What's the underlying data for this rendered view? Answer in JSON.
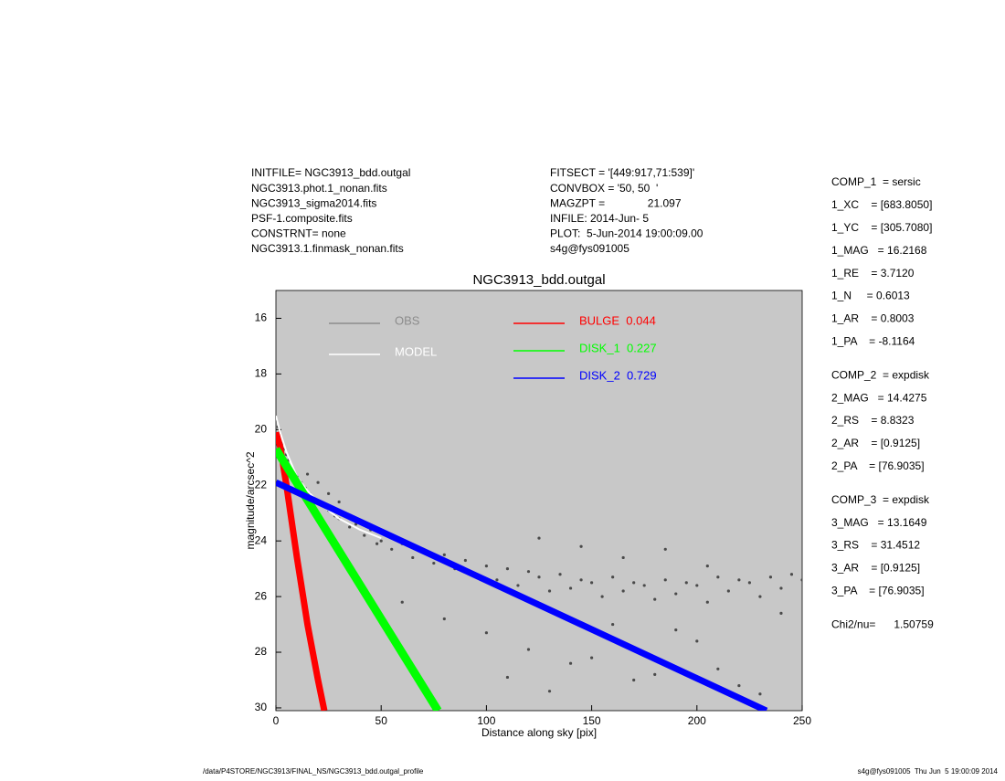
{
  "info_left": [
    "INITFILE= NGC3913_bdd.outgal",
    "NGC3913.phot.1_nonan.fits",
    "NGC3913_sigma2014.fits",
    "PSF-1.composite.fits",
    "CONSTRNT= none",
    "NGC3913.1.finmask_nonan.fits"
  ],
  "info_mid": [
    "FITSECT = '[449:917,71:539]'",
    "CONVBOX = '50, 50  '",
    "MAGZPT =              21.097",
    "INFILE: 2014-Jun- 5",
    "PLOT:  5-Jun-2014 19:00:09.00",
    "s4g@fys091005"
  ],
  "params": [
    [
      "COMP_1  = sersic",
      "1_XC    = [683.8050]",
      "1_YC    = [305.7080]",
      "1_MAG   = 16.2168",
      "1_RE    = 3.7120",
      "1_N     = 0.6013",
      "1_AR    = 0.8003",
      "1_PA    = -8.1164"
    ],
    [
      "COMP_2  = expdisk",
      "2_MAG   = 14.4275",
      "2_RS    = 8.8323",
      "2_AR    = [0.9125]",
      "2_PA    = [76.9035]"
    ],
    [
      "COMP_3  = expdisk",
      "3_MAG   = 13.1649",
      "3_RS    = 31.4512",
      "3_AR    = [0.9125]",
      "3_PA    = [76.9035]"
    ],
    [
      "Chi2/nu=      1.50759"
    ]
  ],
  "footer_left": "/data/P4STORE/NGC3913/FINAL_NS/NGC3913_bdd.outgal_profile",
  "footer_right": "s4g@fys091005  Thu Jun  5 19:00:09 2014",
  "chart_data": {
    "type": "scatter",
    "title": "NGC3913_bdd.outgal",
    "xlabel": "Distance along sky [pix]",
    "ylabel": "magnitude/arcsec^2",
    "xlim": [
      0,
      250
    ],
    "ylim": [
      15,
      30.1
    ],
    "y_inverted": true,
    "xticks": [
      0,
      50,
      100,
      150,
      200,
      250
    ],
    "yticks": [
      16,
      18,
      20,
      22,
      24,
      26,
      28,
      30
    ],
    "background": "#c8c8c8",
    "series": [
      {
        "name": "OBS",
        "color": "#4a4a4a",
        "legend_color": "#8c8c8c",
        "mode": "markers",
        "x": [
          0,
          1,
          2,
          3,
          4,
          5,
          6,
          8,
          10,
          12,
          14,
          16,
          18,
          20,
          22,
          25,
          28,
          30,
          15,
          20,
          25,
          30,
          35,
          38,
          42,
          45,
          48,
          50,
          55,
          60,
          65,
          70,
          75,
          80,
          85,
          90,
          95,
          100,
          105,
          110,
          115,
          120,
          125,
          130,
          135,
          140,
          145,
          150,
          155,
          160,
          165,
          170,
          175,
          180,
          185,
          190,
          195,
          200,
          205,
          210,
          215,
          220,
          225,
          230,
          235,
          240,
          245,
          250,
          60,
          80,
          100,
          120,
          140,
          160,
          180,
          200,
          220,
          240,
          110,
          130,
          150,
          170,
          190,
          210,
          230,
          125,
          145,
          165,
          185,
          205
        ],
        "values": [
          19.6,
          19.9,
          20.2,
          20.5,
          20.7,
          20.9,
          21.1,
          21.4,
          21.7,
          21.9,
          22.1,
          22.3,
          22.5,
          22.6,
          22.7,
          22.9,
          23.1,
          23.2,
          21.6,
          21.9,
          22.3,
          22.6,
          23.5,
          23.4,
          23.8,
          23.6,
          24.1,
          24.0,
          24.3,
          24.1,
          24.6,
          24.3,
          24.8,
          24.5,
          25.0,
          24.7,
          25.3,
          24.9,
          25.4,
          25.0,
          25.6,
          25.1,
          25.3,
          25.8,
          25.2,
          25.7,
          25.4,
          25.5,
          26.0,
          25.3,
          25.8,
          25.5,
          25.6,
          26.1,
          25.4,
          25.9,
          25.5,
          25.6,
          26.2,
          25.3,
          25.8,
          25.4,
          25.5,
          26.0,
          25.3,
          25.7,
          25.2,
          25.4,
          26.2,
          26.8,
          27.3,
          27.9,
          28.4,
          27.0,
          28.8,
          27.6,
          29.2,
          26.6,
          28.9,
          29.4,
          28.2,
          29.0,
          27.2,
          28.6,
          29.5,
          23.9,
          24.2,
          24.6,
          24.3,
          24.9
        ]
      },
      {
        "name": "MODEL",
        "color": "#ffffff",
        "mode": "line",
        "x": [
          0,
          2,
          5,
          10,
          15,
          20,
          30,
          40,
          50
        ],
        "values": [
          19.5,
          20.1,
          20.8,
          21.7,
          22.2,
          22.6,
          23.2,
          23.6,
          23.9
        ]
      },
      {
        "name": "BULGE  0.044",
        "color": "#ff0000",
        "mode": "line",
        "x": [
          0,
          2,
          5,
          10,
          15,
          20,
          23
        ],
        "values": [
          20.1,
          20.6,
          22.0,
          24.6,
          27.0,
          29.0,
          30.1
        ]
      },
      {
        "name": "DISK_1  0.227",
        "color": "#00ff00",
        "mode": "line",
        "x": [
          0,
          77
        ],
        "values": [
          20.7,
          30.1
        ]
      },
      {
        "name": "DISK_2  0.729",
        "color": "#0000ff",
        "mode": "line",
        "x": [
          0,
          233
        ],
        "values": [
          21.9,
          30.1
        ]
      }
    ]
  }
}
